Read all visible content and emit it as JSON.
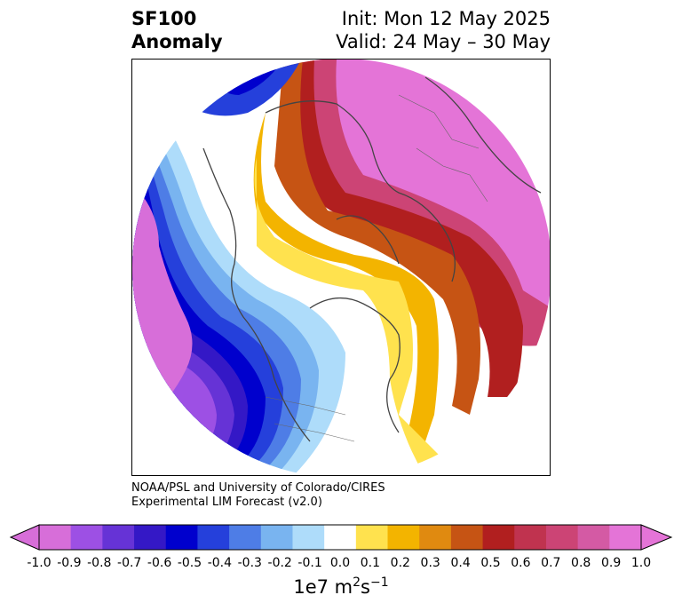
{
  "title": {
    "variable": "SF100",
    "kind": "Anomaly",
    "init": "Init: Mon 12 May 2025",
    "valid": "Valid: 24 May – 30 May"
  },
  "credit": {
    "line1": "NOAA/PSL and University of Colorado/CIRES",
    "line2": "Experimental LIM Forecast (v2.0)"
  },
  "colorbar": {
    "ticks": [
      "-1.0",
      "-0.9",
      "-0.8",
      "-0.7",
      "-0.6",
      "-0.5",
      "-0.4",
      "-0.3",
      "-0.2",
      "-0.1",
      "0.0",
      "0.1",
      "0.2",
      "0.3",
      "0.4",
      "0.5",
      "0.6",
      "0.7",
      "0.8",
      "0.9",
      "1.0"
    ],
    "colors": [
      "#d76ed9",
      "#9d50e4",
      "#6633d6",
      "#3418c6",
      "#0000cd",
      "#2540db",
      "#4e7de6",
      "#79b4f0",
      "#aedcfa",
      "#ffffff",
      "#ffe24e",
      "#f3b400",
      "#e08a10",
      "#c65414",
      "#b11f1f",
      "#c0334f",
      "#cc4475",
      "#d45aa4",
      "#e474d7"
    ],
    "units_base": "1e7 m",
    "units_exp1": "2",
    "units_mid": "s",
    "units_exp2": "−1"
  }
}
